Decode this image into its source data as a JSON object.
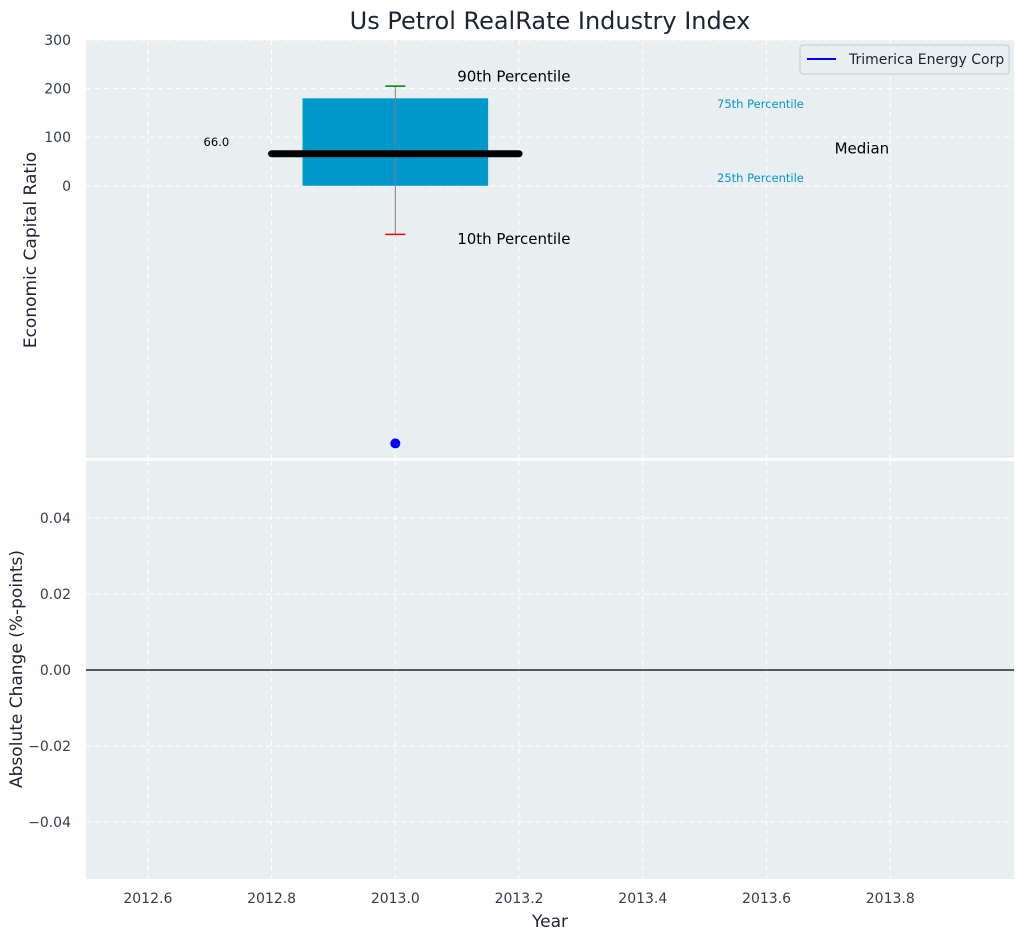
{
  "chart_data": [
    {
      "type": "box",
      "title": "Us Petrol RealRate Industry Index",
      "xlabel": "",
      "ylabel": "Economic Capital Ratio",
      "xlim": [
        2012.5,
        2014.0
      ],
      "ylim": [
        -560,
        300
      ],
      "yticks": [
        0,
        100,
        200,
        300
      ],
      "grid": true,
      "legend": {
        "position": "top-right",
        "entries": [
          {
            "label": "Trimerica Energy Corp",
            "color": "#0000ff"
          }
        ]
      },
      "box": {
        "x": 2013.0,
        "p10": -100,
        "p25": 0,
        "median": 66.0,
        "p75": 180,
        "p90": 205,
        "box_x_range": [
          2012.85,
          2013.15
        ],
        "median_x_range": [
          2012.8,
          2013.2
        ],
        "color": "#0099cc"
      },
      "company_point": {
        "x": 2013.0,
        "y": -530,
        "color": "#0000ff"
      },
      "annotations": [
        {
          "text": "90th Percentile",
          "x": 2013.1,
          "y": 215,
          "color": "#000000",
          "size": "large"
        },
        {
          "text": "10th Percentile",
          "x": 2013.1,
          "y": -120,
          "color": "#000000",
          "size": "large"
        },
        {
          "text": "75th Percentile",
          "x": 2013.52,
          "y": 160,
          "color": "#0099cc",
          "size": "small"
        },
        {
          "text": "25th Percentile",
          "x": 2013.52,
          "y": 8,
          "color": "#0099cc",
          "size": "small"
        },
        {
          "text": "Median",
          "x": 2013.71,
          "y": 66,
          "color": "#000000",
          "size": "large"
        },
        {
          "text": "66.0",
          "x": 2012.69,
          "y": 82,
          "color": "#000000",
          "size": "small"
        }
      ]
    },
    {
      "type": "line",
      "xlabel": "Year",
      "ylabel": "Absolute Change (%-points)",
      "xlim": [
        2012.5,
        2014.0
      ],
      "ylim": [
        -0.055,
        0.055
      ],
      "xticks": [
        "2012.6",
        "2012.8",
        "2013.0",
        "2013.2",
        "2013.4",
        "2013.6",
        "2013.8"
      ],
      "yticks": [
        "0.04",
        "0.02",
        "0.00",
        "−0.02",
        "−0.04"
      ],
      "grid": true,
      "zero_line": true,
      "series": []
    }
  ]
}
